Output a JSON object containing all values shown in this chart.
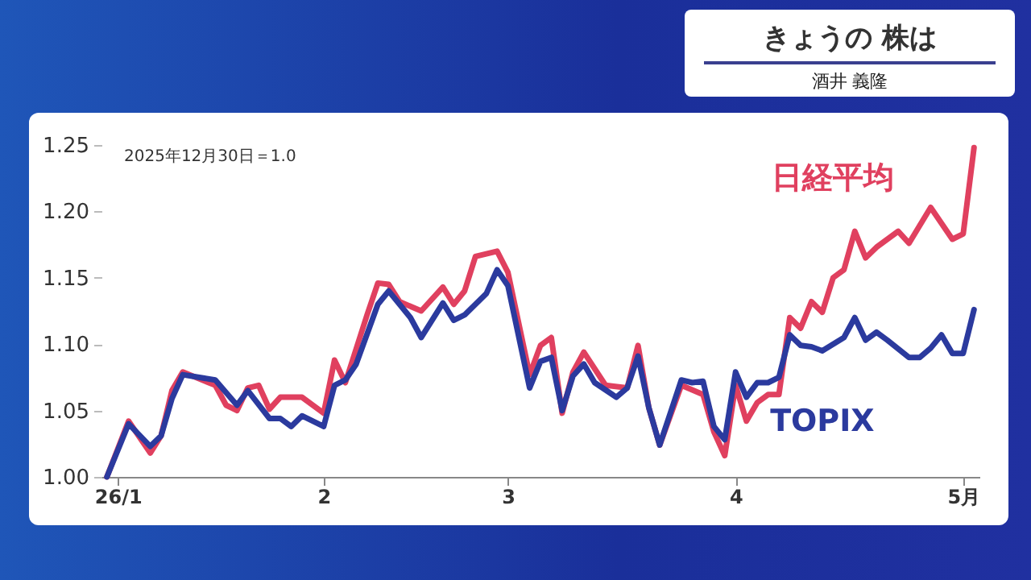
{
  "chart_data": {
    "type": "line",
    "title": "きょうの 株は",
    "subtitle": "酒井 義隆",
    "annotations": [
      "2025年12月30日＝1.0"
    ],
    "categories": [
      null,
      "26/1",
      null,
      null,
      null,
      null,
      null,
      null,
      null,
      null,
      null,
      null,
      null,
      null,
      null,
      null,
      null,
      null,
      null,
      null,
      "2",
      null,
      null,
      null,
      null,
      null,
      null,
      null,
      null,
      null,
      null,
      null,
      null,
      null,
      null,
      null,
      null,
      "3",
      null,
      null,
      null,
      null,
      null,
      null,
      null,
      null,
      null,
      null,
      null,
      null,
      null,
      null,
      null,
      null,
      null,
      null,
      null,
      null,
      "4",
      null,
      null,
      null,
      null,
      null,
      null,
      null,
      null,
      null,
      null,
      null,
      null,
      null,
      null,
      null,
      null,
      null,
      null,
      null,
      null,
      "5月",
      null
    ],
    "ylim": [
      1.0,
      1.25
    ],
    "yticks": [
      {
        "value": 1.0,
        "label": "1.00"
      },
      1.05,
      {
        "value": 1.1,
        "label": "1.10"
      },
      1.15,
      {
        "value": 1.2,
        "label": "1.20"
      },
      1.25
    ],
    "grid": false,
    "legend": false,
    "marker": "none",
    "line_style": "solid",
    "series": [
      {
        "name": "日経平均",
        "color": "#e0405f",
        "values": [
          1.0,
          null,
          1.042,
          null,
          1.018,
          1.031,
          1.065,
          1.079,
          null,
          null,
          1.069,
          1.054,
          1.05,
          1.067,
          1.069,
          1.051,
          1.06,
          null,
          1.06,
          null,
          1.048,
          1.088,
          1.071,
          null,
          1.122,
          1.146,
          1.145,
          1.132,
          null,
          1.125,
          null,
          1.143,
          1.13,
          1.14,
          1.166,
          null,
          1.17,
          1.154,
          null,
          1.077,
          1.099,
          1.105,
          1.048,
          1.079,
          1.094,
          null,
          1.069,
          null,
          1.067,
          1.099,
          1.052,
          1.024,
          null,
          1.069,
          null,
          1.062,
          1.034,
          1.016,
          1.069,
          1.042,
          1.056,
          1.062,
          1.062,
          1.12,
          1.112,
          1.132,
          1.124,
          1.15,
          1.156,
          1.185,
          1.165,
          1.173,
          null,
          1.185,
          1.176,
          null,
          1.203,
          null,
          1.179,
          1.183,
          1.248
        ]
      },
      {
        "name": "TOPIX",
        "color": "#2b3a9e",
        "values": [
          1.0,
          null,
          1.04,
          null,
          1.023,
          1.031,
          1.059,
          1.077,
          null,
          null,
          1.073,
          null,
          1.054,
          1.065,
          null,
          1.044,
          1.044,
          1.038,
          1.046,
          null,
          1.038,
          1.069,
          1.073,
          1.085,
          null,
          1.13,
          1.14,
          null,
          1.12,
          1.105,
          null,
          1.131,
          1.118,
          1.122,
          null,
          1.138,
          1.156,
          1.144,
          null,
          1.067,
          1.087,
          1.09,
          1.05,
          1.076,
          1.085,
          1.071,
          null,
          1.06,
          1.067,
          1.091,
          1.052,
          1.024,
          null,
          1.073,
          1.071,
          1.072,
          1.038,
          1.028,
          1.079,
          1.06,
          1.071,
          1.071,
          1.075,
          1.107,
          1.099,
          1.098,
          1.095,
          null,
          1.105,
          1.12,
          1.103,
          1.109,
          1.103,
          null,
          1.09,
          1.09,
          1.097,
          1.107,
          1.093,
          1.093,
          1.126
        ]
      }
    ]
  }
}
